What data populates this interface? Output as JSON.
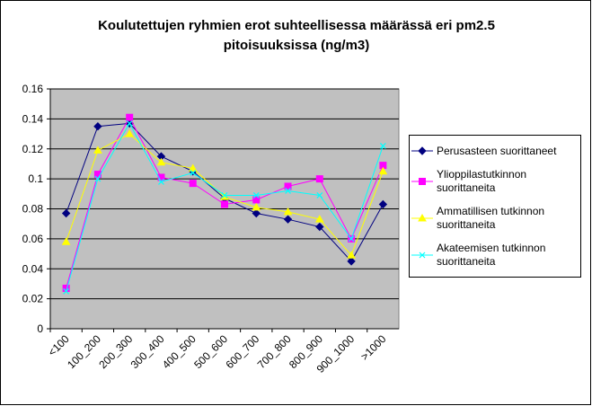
{
  "chart_data": {
    "type": "line",
    "title": "Koulutettujen ryhmien erot suhteellisessa määrässä eri pm2.5 pitoisuuksissa (ng/m3)",
    "categories": [
      "<100",
      "100_200",
      "200_300",
      "300_400",
      "400_500",
      "500_600",
      "600_700",
      "700_800",
      "800_900",
      "900_1000",
      ">1000"
    ],
    "series": [
      {
        "name": "Perusasteen suorittaneet",
        "color": "#000080",
        "marker": "diamond",
        "values": [
          0.077,
          0.135,
          0.137,
          0.115,
          0.105,
          0.087,
          0.077,
          0.073,
          0.068,
          0.045,
          0.083
        ]
      },
      {
        "name": "Ylioppilastutkinnon suorittaneita",
        "color": "#ff00ff",
        "marker": "square",
        "values": [
          0.027,
          0.103,
          0.141,
          0.101,
          0.097,
          0.083,
          0.086,
          0.095,
          0.1,
          0.06,
          0.109
        ]
      },
      {
        "name": "Ammatillisen tutkinnon suorittaneita",
        "color": "#ffff00",
        "marker": "triangle",
        "values": [
          0.058,
          0.119,
          0.13,
          0.111,
          0.107,
          0.088,
          0.081,
          0.078,
          0.073,
          0.049,
          0.105
        ]
      },
      {
        "name": "Akateemisen tutkinnon suorittaneita",
        "color": "#00ffff",
        "marker": "x",
        "values": [
          0.025,
          0.1,
          0.137,
          0.098,
          0.104,
          0.089,
          0.089,
          0.092,
          0.089,
          0.06,
          0.122
        ]
      }
    ],
    "ylim": [
      0,
      0.16
    ],
    "yticks": [
      0,
      0.02,
      0.04,
      0.06,
      0.08,
      0.1,
      0.12,
      0.14,
      0.16
    ],
    "grid": true
  }
}
